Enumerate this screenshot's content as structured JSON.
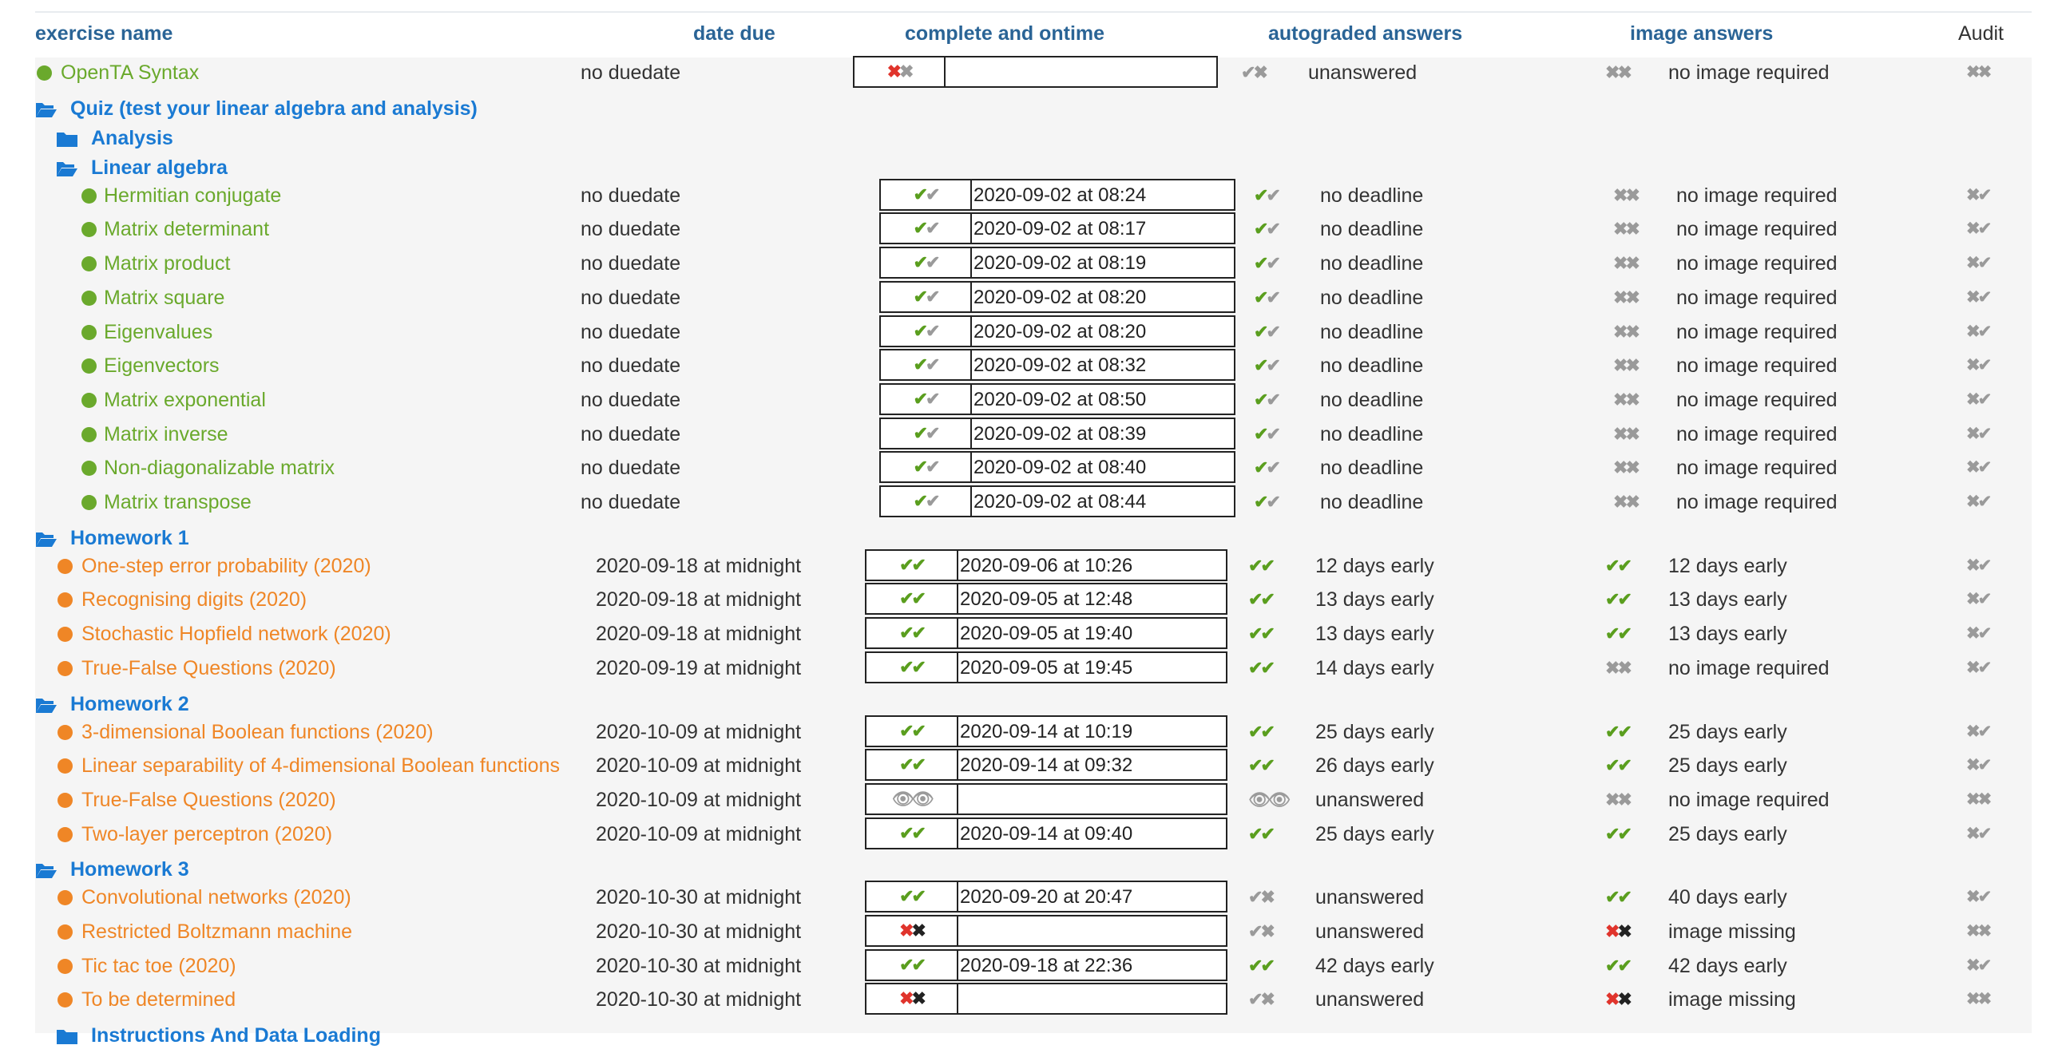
{
  "headers": {
    "exercise_name": "exercise name",
    "date_due": "date due",
    "complete_ontime": "complete and ontime",
    "autograded": "autograded answers",
    "image": "image answers",
    "audit": "Audit"
  },
  "colors": {
    "header_text": "#2a6496",
    "folder_blue": "#1a7ad3",
    "quiz_green": "#6aa92c",
    "homework_orange": "#ef8626",
    "check_green": "#5a9e1e",
    "cross_red": "#e0342c",
    "muted_gray": "#9a9a9a"
  },
  "rows": [
    {
      "kind": "exercise",
      "level": 0,
      "color": "green",
      "name": "OpenTA Syntax",
      "due": "no duedate",
      "box": "a",
      "comp": "rx",
      "ts": "",
      "auto": "gx",
      "auto_text": "unanswered",
      "img": "xx",
      "img_text": "no image required",
      "audit": "xx"
    },
    {
      "kind": "folder",
      "level": 0,
      "open": true,
      "name": "Quiz (test your linear algebra and analysis)"
    },
    {
      "kind": "folder",
      "level": 1,
      "open": false,
      "name": "Analysis"
    },
    {
      "kind": "folder",
      "level": 1,
      "open": true,
      "name": "Linear algebra"
    },
    {
      "kind": "exercise",
      "level": 2,
      "color": "green",
      "name": "Hermitian conjugate",
      "due": "no duedate",
      "box": "q",
      "comp": "gg2",
      "ts": "2020-09-02 at 08:24",
      "auto": "gg2",
      "auto_text": "no deadline",
      "img": "xx",
      "img_text": "no image required",
      "audit": "xg"
    },
    {
      "kind": "exercise",
      "level": 2,
      "color": "green",
      "name": "Matrix determinant",
      "due": "no duedate",
      "box": "q",
      "comp": "gg2",
      "ts": "2020-09-02 at 08:17",
      "auto": "gg2",
      "auto_text": "no deadline",
      "img": "xx",
      "img_text": "no image required",
      "audit": "xg"
    },
    {
      "kind": "exercise",
      "level": 2,
      "color": "green",
      "name": "Matrix product",
      "due": "no duedate",
      "box": "q",
      "comp": "gg2",
      "ts": "2020-09-02 at 08:19",
      "auto": "gg2",
      "auto_text": "no deadline",
      "img": "xx",
      "img_text": "no image required",
      "audit": "xg"
    },
    {
      "kind": "exercise",
      "level": 2,
      "color": "green",
      "name": "Matrix square",
      "due": "no duedate",
      "box": "q",
      "comp": "gg2",
      "ts": "2020-09-02 at 08:20",
      "auto": "gg2",
      "auto_text": "no deadline",
      "img": "xx",
      "img_text": "no image required",
      "audit": "xg"
    },
    {
      "kind": "exercise",
      "level": 2,
      "color": "green",
      "name": "Eigenvalues",
      "due": "no duedate",
      "box": "q",
      "comp": "gg2",
      "ts": "2020-09-02 at 08:20",
      "auto": "gg2",
      "auto_text": "no deadline",
      "img": "xx",
      "img_text": "no image required",
      "audit": "xg"
    },
    {
      "kind": "exercise",
      "level": 2,
      "color": "green",
      "name": "Eigenvectors",
      "due": "no duedate",
      "box": "q",
      "comp": "gg2",
      "ts": "2020-09-02 at 08:32",
      "auto": "gg2",
      "auto_text": "no deadline",
      "img": "xx",
      "img_text": "no image required",
      "audit": "xg"
    },
    {
      "kind": "exercise",
      "level": 2,
      "color": "green",
      "name": "Matrix exponential",
      "due": "no duedate",
      "box": "q",
      "comp": "gg2",
      "ts": "2020-09-02 at 08:50",
      "auto": "gg2",
      "auto_text": "no deadline",
      "img": "xx",
      "img_text": "no image required",
      "audit": "xg"
    },
    {
      "kind": "exercise",
      "level": 2,
      "color": "green",
      "name": "Matrix inverse",
      "due": "no duedate",
      "box": "q",
      "comp": "gg2",
      "ts": "2020-09-02 at 08:39",
      "auto": "gg2",
      "auto_text": "no deadline",
      "img": "xx",
      "img_text": "no image required",
      "audit": "xg"
    },
    {
      "kind": "exercise",
      "level": 2,
      "color": "green",
      "name": "Non-diagonalizable matrix",
      "due": "no duedate",
      "box": "q",
      "comp": "gg2",
      "ts": "2020-09-02 at 08:40",
      "auto": "gg2",
      "auto_text": "no deadline",
      "img": "xx",
      "img_text": "no image required",
      "audit": "xg"
    },
    {
      "kind": "exercise",
      "level": 2,
      "color": "green",
      "name": "Matrix transpose",
      "due": "no duedate",
      "box": "q",
      "comp": "gg2",
      "ts": "2020-09-02 at 08:44",
      "auto": "gg2",
      "auto_text": "no deadline",
      "img": "xx",
      "img_text": "no image required",
      "audit": "xg"
    },
    {
      "kind": "folder",
      "level": 0,
      "open": true,
      "name": "Homework 1"
    },
    {
      "kind": "exercise",
      "level": 1,
      "color": "orange",
      "name": "One-step error probability (2020)",
      "due": "2020-09-18 at midnight",
      "box": "h",
      "comp": "gg",
      "ts": "2020-09-06 at 10:26",
      "auto": "gg",
      "auto_text": "12 days early",
      "img": "gg",
      "img_text": "12 days early",
      "audit": "xg"
    },
    {
      "kind": "exercise",
      "level": 1,
      "color": "orange",
      "name": "Recognising digits (2020)",
      "due": "2020-09-18 at midnight",
      "box": "h",
      "comp": "gg",
      "ts": "2020-09-05 at 12:48",
      "auto": "gg",
      "auto_text": "13 days early",
      "img": "gg",
      "img_text": "13 days early",
      "audit": "xg"
    },
    {
      "kind": "exercise",
      "level": 1,
      "color": "orange",
      "name": "Stochastic Hopfield network (2020)",
      "due": "2020-09-18 at midnight",
      "box": "h",
      "comp": "gg",
      "ts": "2020-09-05 at 19:40",
      "auto": "gg",
      "auto_text": "13 days early",
      "img": "gg",
      "img_text": "13 days early",
      "audit": "xg"
    },
    {
      "kind": "exercise",
      "level": 1,
      "color": "orange",
      "name": "True-False Questions (2020)",
      "due": "2020-09-19 at midnight",
      "box": "h",
      "comp": "gg",
      "ts": "2020-09-05 at 19:45",
      "auto": "gg",
      "auto_text": "14 days early",
      "img": "xx",
      "img_text": "no image required",
      "audit": "xg"
    },
    {
      "kind": "folder",
      "level": 0,
      "open": true,
      "name": "Homework 2"
    },
    {
      "kind": "exercise",
      "level": 1,
      "color": "orange",
      "name": "3-dimensional Boolean functions (2020)",
      "due": "2020-10-09 at midnight",
      "box": "h",
      "comp": "gg",
      "ts": "2020-09-14 at 10:19",
      "auto": "gg",
      "auto_text": "25 days early",
      "img": "gg",
      "img_text": "25 days early",
      "audit": "xg"
    },
    {
      "kind": "exercise",
      "level": 1,
      "color": "orange",
      "name": " Linear separability of 4-dimensional Boolean functions",
      "due": "2020-10-09 at midnight",
      "box": "h",
      "comp": "gg",
      "ts": "2020-09-14 at 09:32",
      "auto": "gg",
      "auto_text": "26 days early",
      "img": "gg",
      "img_text": "25 days early",
      "audit": "xg"
    },
    {
      "kind": "exercise",
      "level": 1,
      "color": "orange",
      "name": "True-False Questions (2020)",
      "due": "2020-10-09 at midnight",
      "box": "h",
      "comp": "hid",
      "ts": "",
      "auto": "hid",
      "auto_text": "unanswered",
      "img": "xx",
      "img_text": "no image required",
      "audit": "xx"
    },
    {
      "kind": "exercise",
      "level": 1,
      "color": "orange",
      "name": "Two-layer perceptron (2020)",
      "due": "2020-10-09 at midnight",
      "box": "h",
      "comp": "gg",
      "ts": "2020-09-14 at 09:40",
      "auto": "gg",
      "auto_text": "25 days early",
      "img": "gg",
      "img_text": "25 days early",
      "audit": "xg"
    },
    {
      "kind": "folder",
      "level": 0,
      "open": true,
      "name": "Homework 3"
    },
    {
      "kind": "exercise",
      "level": 1,
      "color": "orange",
      "name": "Convolutional networks (2020)",
      "due": "2020-10-30 at midnight",
      "box": "h",
      "comp": "gg",
      "ts": "2020-09-20 at 20:47",
      "auto": "gx",
      "auto_text": "unanswered",
      "img": "gg",
      "img_text": "40 days early",
      "audit": "xg"
    },
    {
      "kind": "exercise",
      "level": 1,
      "color": "orange",
      "name": "Restricted Boltzmann machine",
      "due": "2020-10-30 at midnight",
      "box": "h",
      "comp": "rk",
      "ts": "",
      "auto": "gx",
      "auto_text": "unanswered",
      "img": "rk",
      "img_text": "image missing",
      "audit": "xx"
    },
    {
      "kind": "exercise",
      "level": 1,
      "color": "orange",
      "name": " Tic tac toe (2020)",
      "due": "2020-10-30 at midnight",
      "box": "h",
      "comp": "gg",
      "ts": "2020-09-18 at 22:36",
      "auto": "gg",
      "auto_text": "42 days early",
      "img": "gg",
      "img_text": "42 days early",
      "audit": "xg"
    },
    {
      "kind": "exercise",
      "level": 1,
      "color": "orange",
      "name": "To be determined",
      "due": "2020-10-30 at midnight",
      "box": "h",
      "comp": "rk",
      "ts": "",
      "auto": "gx",
      "auto_text": "unanswered",
      "img": "rk",
      "img_text": "image missing",
      "audit": "xx"
    },
    {
      "kind": "folder",
      "level": 1,
      "open": false,
      "name": "Instructions And Data Loading"
    }
  ]
}
